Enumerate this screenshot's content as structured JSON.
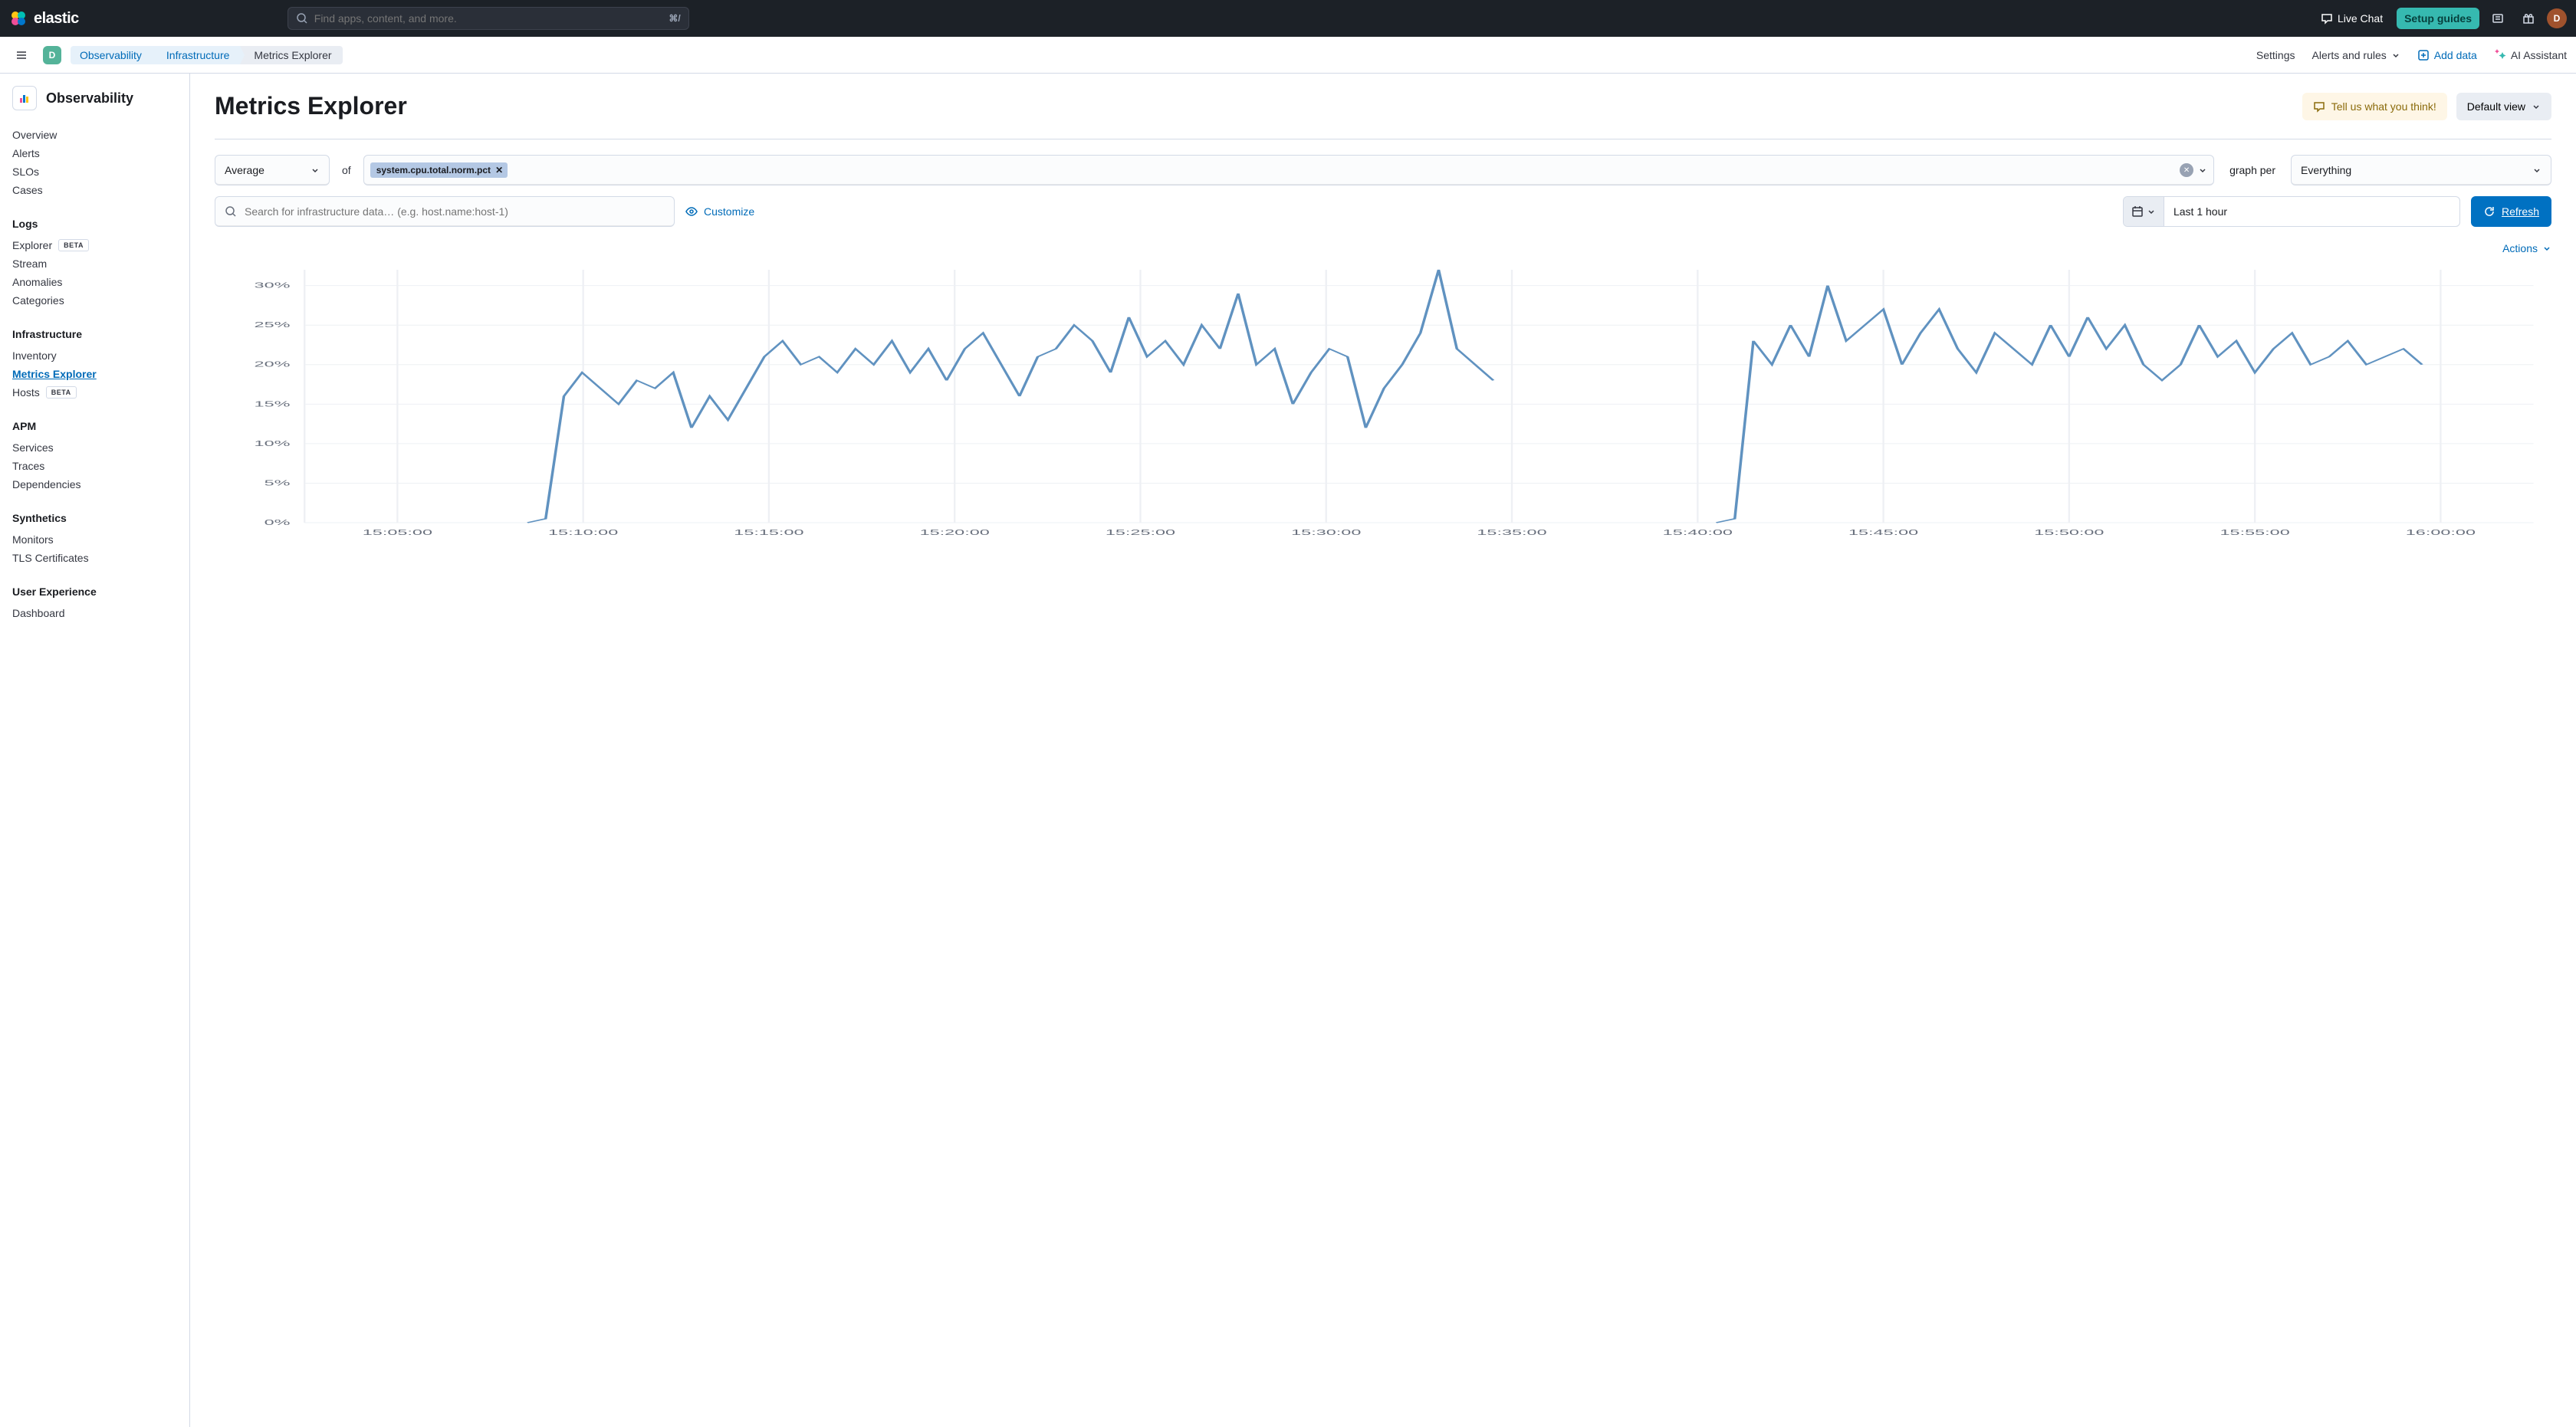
{
  "header": {
    "logo_text": "elastic",
    "search_placeholder": "Find apps, content, and more.",
    "search_kbd": "⌘/",
    "live_chat": "Live Chat",
    "setup_guides": "Setup guides",
    "avatar_initial": "D"
  },
  "sub_header": {
    "space_initial": "D",
    "crumbs": [
      "Observability",
      "Infrastructure",
      "Metrics Explorer"
    ],
    "settings": "Settings",
    "alerts_rules": "Alerts and rules",
    "add_data": "Add data",
    "ai_assistant": "AI Assistant"
  },
  "sidebar": {
    "title": "Observability",
    "top_items": [
      "Overview",
      "Alerts",
      "SLOs",
      "Cases"
    ],
    "logs_heading": "Logs",
    "logs_items": [
      {
        "label": "Explorer",
        "beta": true
      },
      {
        "label": "Stream",
        "beta": false
      },
      {
        "label": "Anomalies",
        "beta": false
      },
      {
        "label": "Categories",
        "beta": false
      }
    ],
    "infra_heading": "Infrastructure",
    "infra_items": [
      {
        "label": "Inventory",
        "active": false,
        "beta": false
      },
      {
        "label": "Metrics Explorer",
        "active": true,
        "beta": false
      },
      {
        "label": "Hosts",
        "active": false,
        "beta": true
      }
    ],
    "apm_heading": "APM",
    "apm_items": [
      "Services",
      "Traces",
      "Dependencies"
    ],
    "synth_heading": "Synthetics",
    "synth_items": [
      "Monitors",
      "TLS Certificates"
    ],
    "ux_heading": "User Experience",
    "ux_items": [
      "Dashboard"
    ],
    "beta_label": "BETA"
  },
  "page": {
    "title": "Metrics Explorer",
    "feedback": "Tell us what you think!",
    "default_view": "Default view",
    "aggregation": "Average",
    "of": "of",
    "metric_pill": "system.cpu.total.norm.pct",
    "graph_per": "graph per",
    "everything": "Everything",
    "search_placeholder": "Search for infrastructure data… (e.g. host.name:host-1)",
    "customize": "Customize",
    "time_range": "Last 1 hour",
    "refresh": "Refresh",
    "actions": "Actions"
  },
  "chart": {
    "type": "line",
    "line_color": "#6092c0",
    "background_color": "#ffffff",
    "grid_color": "#eef0f4",
    "y_ticks": [
      0,
      5,
      10,
      15,
      20,
      25,
      30
    ],
    "y_labels": [
      "0%",
      "5%",
      "10%",
      "15%",
      "20%",
      "25%",
      "30%"
    ],
    "ylim": [
      0,
      32
    ],
    "x_labels": [
      "15:05:00",
      "15:10:00",
      "15:15:00",
      "15:20:00",
      "15:25:00",
      "15:30:00",
      "15:35:00",
      "15:40:00",
      "15:45:00",
      "15:50:00",
      "15:55:00",
      "16:00:00"
    ],
    "series1": {
      "x_start": 12,
      "x_end": 64,
      "values": [
        0,
        0.5,
        16,
        19,
        17,
        15,
        18,
        17,
        19,
        12,
        16,
        13,
        17,
        21,
        23,
        20,
        21,
        19,
        22,
        20,
        23,
        19,
        22,
        18,
        22,
        24,
        20,
        16,
        21,
        22,
        25,
        23,
        19,
        26,
        21,
        23,
        20,
        25,
        22,
        29,
        20,
        22,
        15,
        19,
        22,
        21,
        12,
        17,
        20,
        24,
        32,
        22,
        20,
        18
      ]
    },
    "series2": {
      "x_start": 76,
      "x_end": 114,
      "values": [
        0,
        0.5,
        23,
        20,
        25,
        21,
        30,
        23,
        25,
        27,
        20,
        24,
        27,
        22,
        19,
        24,
        22,
        20,
        25,
        21,
        26,
        22,
        25,
        20,
        18,
        20,
        25,
        21,
        23,
        19,
        22,
        24,
        20,
        21,
        23,
        20,
        21,
        22,
        20
      ]
    }
  }
}
